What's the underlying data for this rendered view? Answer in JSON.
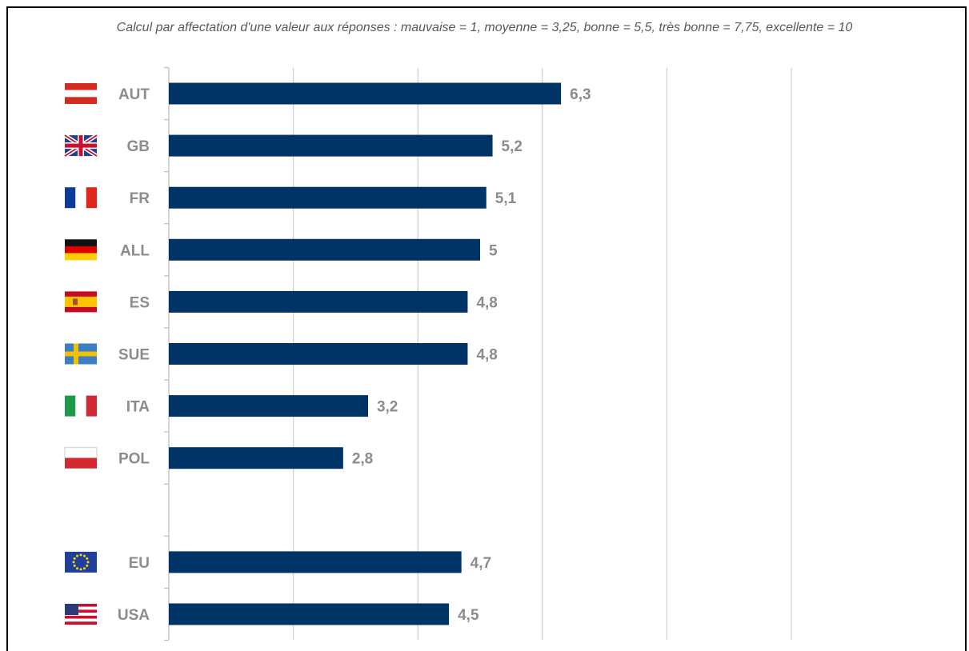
{
  "chart_data": {
    "type": "bar",
    "orientation": "horizontal",
    "subtitle": "Calcul par affectation d'une valeur aux réponses : mauvaise = 1, moyenne = 3,25,  bonne = 5,5, très bonne = 7,75, excellente = 10",
    "categories": [
      "AUT",
      "GB",
      "FR",
      "ALL",
      "ES",
      "SUE",
      "ITA",
      "POL",
      "",
      "EU",
      "USA"
    ],
    "flags": [
      "austria-flag",
      "uk-flag",
      "france-flag",
      "germany-flag",
      "spain-flag",
      "sweden-flag",
      "italy-flag",
      "poland-flag",
      "",
      "eu-flag",
      "usa-flag"
    ],
    "values": [
      6.3,
      5.2,
      5.1,
      5,
      4.8,
      4.8,
      3.2,
      2.8,
      null,
      4.7,
      4.5
    ],
    "value_labels": [
      "6,3",
      "5,2",
      "5,1",
      "5",
      "4,8",
      "4,8",
      "3,2",
      "2,8",
      "",
      "4,7",
      "4,5"
    ],
    "xlim": [
      0,
      10
    ],
    "x_gridlines": [
      2,
      4,
      6,
      8,
      10
    ],
    "grid": true,
    "bar_color": "#003366",
    "label_color": "#8c8c8c"
  }
}
